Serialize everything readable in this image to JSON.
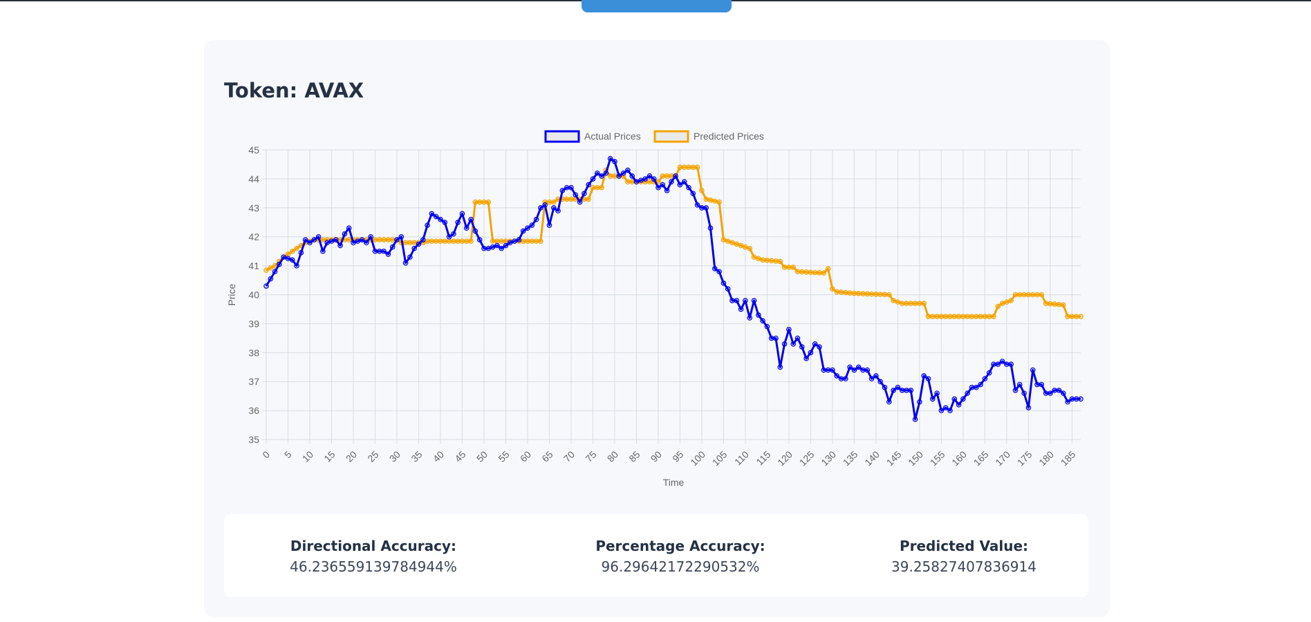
{
  "token": {
    "title": "Token: AVAX"
  },
  "colors": {
    "actual": "#0000ee",
    "predicted": "#f5a300",
    "grid": "#d9dde3",
    "axis_text": "#666666"
  },
  "stats": {
    "directional_label": "Directional Accuracy:",
    "directional_value": "46.236559139784944%",
    "percentage_label": "Percentage Accuracy:",
    "percentage_value": "96.29642172290532%",
    "predicted_label": "Predicted Value:",
    "predicted_value": "39.25827407836914"
  },
  "chart_data": {
    "type": "line",
    "xlabel": "Time",
    "ylabel": "Price",
    "xlim": [
      0,
      187
    ],
    "ylim": [
      35,
      45
    ],
    "x_ticks": [
      0,
      5,
      10,
      15,
      20,
      25,
      30,
      35,
      40,
      45,
      50,
      55,
      60,
      65,
      70,
      75,
      80,
      85,
      90,
      95,
      100,
      105,
      110,
      115,
      120,
      125,
      130,
      135,
      140,
      145,
      150,
      155,
      160,
      165,
      170,
      175,
      180,
      185
    ],
    "y_ticks": [
      35,
      36,
      37,
      38,
      39,
      40,
      41,
      42,
      43,
      44,
      45
    ],
    "legend": [
      "Actual Prices",
      "Predicted Prices"
    ],
    "legend_position": "top",
    "grid": true,
    "series": [
      {
        "name": "Actual Prices",
        "keypoints": [
          [
            0,
            40.3
          ],
          [
            2,
            40.8
          ],
          [
            4,
            41.3
          ],
          [
            6,
            41.2
          ],
          [
            7,
            41.0
          ],
          [
            9,
            41.9
          ],
          [
            10,
            41.8
          ],
          [
            12,
            42.0
          ],
          [
            13,
            41.5
          ],
          [
            14,
            41.8
          ],
          [
            16,
            41.9
          ],
          [
            17,
            41.7
          ],
          [
            18,
            42.1
          ],
          [
            19,
            42.3
          ],
          [
            20,
            41.8
          ],
          [
            22,
            41.9
          ],
          [
            23,
            41.8
          ],
          [
            24,
            42.0
          ],
          [
            25,
            41.5
          ],
          [
            27,
            41.5
          ],
          [
            28,
            41.4
          ],
          [
            30,
            41.9
          ],
          [
            31,
            42.0
          ],
          [
            32,
            41.1
          ],
          [
            33,
            41.3
          ],
          [
            34,
            41.6
          ],
          [
            36,
            41.9
          ],
          [
            37,
            42.4
          ],
          [
            38,
            42.8
          ],
          [
            40,
            42.6
          ],
          [
            41,
            42.5
          ],
          [
            42,
            42.0
          ],
          [
            43,
            42.1
          ],
          [
            44,
            42.5
          ],
          [
            45,
            42.8
          ],
          [
            46,
            42.3
          ],
          [
            47,
            42.6
          ],
          [
            48,
            42.2
          ],
          [
            50,
            41.6
          ],
          [
            51,
            41.6
          ],
          [
            53,
            41.7
          ],
          [
            54,
            41.6
          ],
          [
            56,
            41.8
          ],
          [
            58,
            41.9
          ],
          [
            59,
            42.2
          ],
          [
            61,
            42.4
          ],
          [
            62,
            42.6
          ],
          [
            63,
            43.0
          ],
          [
            64,
            43.1
          ],
          [
            65,
            42.4
          ],
          [
            66,
            43.0
          ],
          [
            67,
            42.9
          ],
          [
            68,
            43.6
          ],
          [
            69,
            43.7
          ],
          [
            70,
            43.7
          ],
          [
            72,
            43.2
          ],
          [
            73,
            43.5
          ],
          [
            74,
            43.8
          ],
          [
            76,
            44.2
          ],
          [
            77,
            44.1
          ],
          [
            78,
            44.2
          ],
          [
            79,
            44.7
          ],
          [
            80,
            44.6
          ],
          [
            81,
            44.1
          ],
          [
            82,
            44.2
          ],
          [
            83,
            44.3
          ],
          [
            84,
            44.1
          ],
          [
            85,
            43.9
          ],
          [
            87,
            44.0
          ],
          [
            88,
            44.1
          ],
          [
            89,
            44.0
          ],
          [
            90,
            43.7
          ],
          [
            91,
            43.8
          ],
          [
            92,
            43.6
          ],
          [
            93,
            43.9
          ],
          [
            94,
            44.1
          ],
          [
            95,
            43.8
          ],
          [
            96,
            43.9
          ],
          [
            98,
            43.5
          ],
          [
            99,
            43.1
          ],
          [
            100,
            43.0
          ],
          [
            101,
            43.0
          ],
          [
            102,
            42.3
          ],
          [
            103,
            40.9
          ],
          [
            104,
            40.8
          ],
          [
            105,
            40.4
          ],
          [
            106,
            40.2
          ],
          [
            107,
            39.8
          ],
          [
            108,
            39.8
          ],
          [
            109,
            39.5
          ],
          [
            110,
            39.8
          ],
          [
            111,
            39.2
          ],
          [
            112,
            39.8
          ],
          [
            113,
            39.3
          ],
          [
            114,
            39.1
          ],
          [
            115,
            38.9
          ],
          [
            116,
            38.5
          ],
          [
            117,
            38.5
          ],
          [
            118,
            37.5
          ],
          [
            119,
            38.3
          ],
          [
            120,
            38.8
          ],
          [
            121,
            38.3
          ],
          [
            122,
            38.5
          ],
          [
            123,
            38.2
          ],
          [
            124,
            37.8
          ],
          [
            125,
            38.0
          ],
          [
            126,
            38.3
          ],
          [
            127,
            38.2
          ],
          [
            128,
            37.4
          ],
          [
            129,
            37.4
          ],
          [
            130,
            37.4
          ],
          [
            131,
            37.2
          ],
          [
            132,
            37.1
          ],
          [
            133,
            37.1
          ],
          [
            134,
            37.5
          ],
          [
            135,
            37.4
          ],
          [
            136,
            37.5
          ],
          [
            137,
            37.4
          ],
          [
            138,
            37.4
          ],
          [
            139,
            37.1
          ],
          [
            140,
            37.2
          ],
          [
            141,
            37.0
          ],
          [
            142,
            36.8
          ],
          [
            143,
            36.3
          ],
          [
            144,
            36.7
          ],
          [
            145,
            36.8
          ],
          [
            146,
            36.7
          ],
          [
            147,
            36.7
          ],
          [
            148,
            36.7
          ],
          [
            149,
            35.7
          ],
          [
            150,
            36.3
          ],
          [
            151,
            37.2
          ],
          [
            152,
            37.1
          ],
          [
            153,
            36.4
          ],
          [
            154,
            36.6
          ],
          [
            155,
            36.0
          ],
          [
            156,
            36.1
          ],
          [
            157,
            36.0
          ],
          [
            158,
            36.4
          ],
          [
            159,
            36.2
          ],
          [
            160,
            36.4
          ],
          [
            161,
            36.6
          ],
          [
            162,
            36.8
          ],
          [
            163,
            36.8
          ],
          [
            164,
            36.9
          ],
          [
            165,
            37.1
          ],
          [
            166,
            37.3
          ],
          [
            167,
            37.6
          ],
          [
            168,
            37.6
          ],
          [
            169,
            37.7
          ],
          [
            170,
            37.6
          ],
          [
            171,
            37.6
          ],
          [
            172,
            36.7
          ],
          [
            173,
            36.9
          ],
          [
            174,
            36.6
          ],
          [
            175,
            36.1
          ],
          [
            176,
            37.4
          ],
          [
            177,
            36.9
          ],
          [
            178,
            36.9
          ],
          [
            179,
            36.6
          ],
          [
            180,
            36.6
          ],
          [
            181,
            36.7
          ],
          [
            182,
            36.7
          ],
          [
            183,
            36.6
          ],
          [
            184,
            36.3
          ],
          [
            185,
            36.4
          ],
          [
            187,
            36.4
          ]
        ]
      },
      {
        "name": "Predicted Prices",
        "keypoints": [
          [
            0,
            40.85
          ],
          [
            2,
            41.0
          ],
          [
            4,
            41.3
          ],
          [
            7,
            41.6
          ],
          [
            9,
            41.8
          ],
          [
            11,
            41.9
          ],
          [
            30,
            41.9
          ],
          [
            31,
            41.8
          ],
          [
            36,
            41.8
          ],
          [
            37,
            41.85
          ],
          [
            47,
            41.85
          ],
          [
            48,
            43.2
          ],
          [
            51,
            43.2
          ],
          [
            52,
            41.85
          ],
          [
            63,
            41.85
          ],
          [
            64,
            43.2
          ],
          [
            66,
            43.2
          ],
          [
            67,
            43.3
          ],
          [
            74,
            43.3
          ],
          [
            75,
            43.7
          ],
          [
            77,
            43.7
          ],
          [
            78,
            44.3
          ],
          [
            79,
            44.1
          ],
          [
            82,
            44.1
          ],
          [
            83,
            43.9
          ],
          [
            90,
            43.9
          ],
          [
            91,
            44.1
          ],
          [
            94,
            44.1
          ],
          [
            95,
            44.4
          ],
          [
            99,
            44.4
          ],
          [
            100,
            43.6
          ],
          [
            101,
            43.3
          ],
          [
            104,
            43.2
          ],
          [
            105,
            41.9
          ],
          [
            107,
            41.8
          ],
          [
            109,
            41.7
          ],
          [
            111,
            41.6
          ],
          [
            112,
            41.3
          ],
          [
            114,
            41.2
          ],
          [
            118,
            41.15
          ],
          [
            119,
            40.95
          ],
          [
            121,
            40.95
          ],
          [
            122,
            40.8
          ],
          [
            128,
            40.75
          ],
          [
            129,
            40.9
          ],
          [
            130,
            40.2
          ],
          [
            131,
            40.1
          ],
          [
            135,
            40.05
          ],
          [
            143,
            40.0
          ],
          [
            144,
            39.8
          ],
          [
            146,
            39.7
          ],
          [
            151,
            39.7
          ],
          [
            152,
            39.25
          ],
          [
            167,
            39.25
          ],
          [
            168,
            39.6
          ],
          [
            169,
            39.7
          ],
          [
            171,
            39.8
          ],
          [
            172,
            40.0
          ],
          [
            178,
            40.0
          ],
          [
            179,
            39.7
          ],
          [
            183,
            39.65
          ],
          [
            184,
            39.25
          ],
          [
            187,
            39.25
          ]
        ]
      }
    ]
  }
}
